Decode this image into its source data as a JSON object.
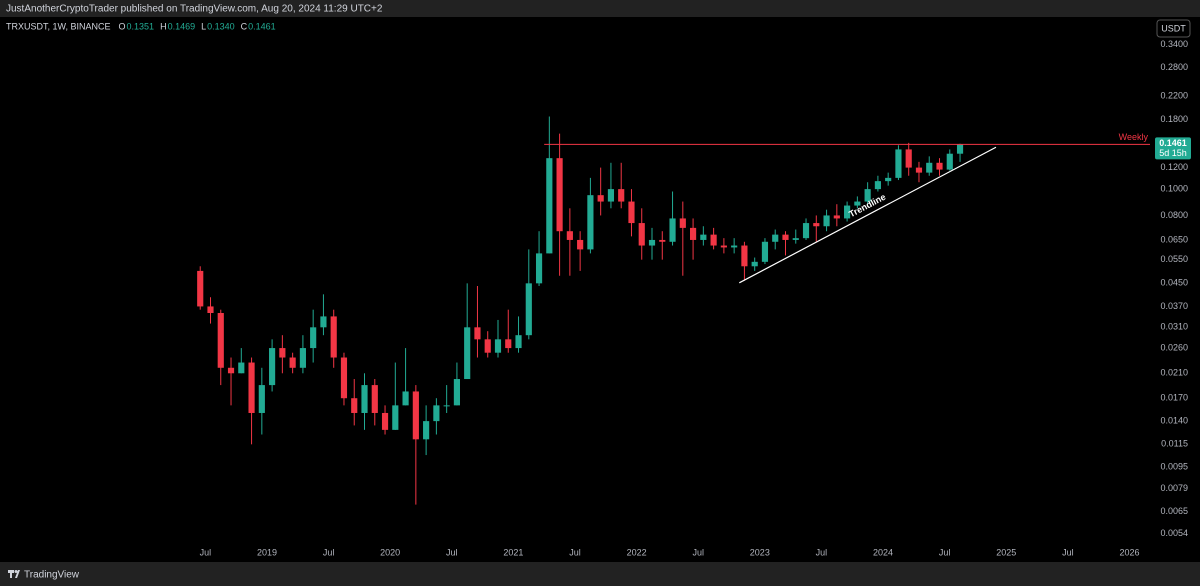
{
  "header": {
    "publisher": "JustAnotherCryptoTrader published on TradingView.com, Aug 20, 2024 11:29 UTC+2"
  },
  "footer": {
    "brand": "TradingView"
  },
  "chart_data": {
    "type": "candlestick",
    "symbol": "TRXUSDT, 1W, BINANCE",
    "ohlc_legend": [
      {
        "key": "O",
        "text": "0.1351"
      },
      {
        "key": "H",
        "text": "0.1469"
      },
      {
        "key": "L",
        "text": "0.1340"
      },
      {
        "key": "C",
        "text": "0.1461"
      }
    ],
    "currency": "USDT",
    "countdown": "5d 15h",
    "up_color": "#22ab94",
    "down_color": "#f23645",
    "log_scale": true,
    "grid": false,
    "x": [
      "2018-06",
      "2018-07",
      "2018-08",
      "2018-09",
      "2018-10",
      "2018-11",
      "2018-12",
      "2019-01",
      "2019-02",
      "2019-03",
      "2019-04",
      "2019-05",
      "2019-06",
      "2019-07",
      "2019-08",
      "2019-09",
      "2019-10",
      "2019-11",
      "2019-12",
      "2020-01",
      "2020-02",
      "2020-03",
      "2020-04",
      "2020-05",
      "2020-06",
      "2020-07",
      "2020-08",
      "2020-09",
      "2020-10",
      "2020-11",
      "2020-12",
      "2021-01",
      "2021-02",
      "2021-03",
      "2021-04",
      "2021-05",
      "2021-06",
      "2021-07",
      "2021-08",
      "2021-09",
      "2021-10",
      "2021-11",
      "2021-12",
      "2022-01",
      "2022-02",
      "2022-03",
      "2022-04",
      "2022-05",
      "2022-06",
      "2022-07",
      "2022-08",
      "2022-09",
      "2022-10",
      "2022-11",
      "2022-12",
      "2023-01",
      "2023-02",
      "2023-03",
      "2023-04",
      "2023-05",
      "2023-06",
      "2023-07",
      "2023-08",
      "2023-09",
      "2023-10",
      "2023-11",
      "2023-12",
      "2024-01",
      "2024-02",
      "2024-03",
      "2024-04",
      "2024-05",
      "2024-06",
      "2024-07",
      "2024-08"
    ],
    "open": [
      0.05,
      0.037,
      0.035,
      0.022,
      0.021,
      0.023,
      0.015,
      0.019,
      0.026,
      0.024,
      0.022,
      0.026,
      0.031,
      0.034,
      0.024,
      0.017,
      0.015,
      0.019,
      0.015,
      0.013,
      0.016,
      0.018,
      0.012,
      0.014,
      0.016,
      0.016,
      0.02,
      0.031,
      0.028,
      0.025,
      0.028,
      0.026,
      0.029,
      0.045,
      0.058,
      0.13,
      0.07,
      0.065,
      0.06,
      0.095,
      0.09,
      0.1,
      0.09,
      0.075,
      0.062,
      0.065,
      0.064,
      0.078,
      0.072,
      0.065,
      0.068,
      0.062,
      0.061,
      0.062,
      0.052,
      0.054,
      0.064,
      0.068,
      0.065,
      0.066,
      0.075,
      0.073,
      0.08,
      0.078,
      0.087,
      0.09,
      0.1,
      0.107,
      0.11,
      0.14,
      0.12,
      0.115,
      0.125,
      0.118,
      0.135
    ],
    "high": [
      0.052,
      0.04,
      0.036,
      0.024,
      0.026,
      0.024,
      0.022,
      0.028,
      0.029,
      0.025,
      0.029,
      0.036,
      0.041,
      0.036,
      0.025,
      0.02,
      0.021,
      0.02,
      0.016,
      0.023,
      0.026,
      0.019,
      0.016,
      0.017,
      0.019,
      0.023,
      0.045,
      0.044,
      0.03,
      0.033,
      0.036,
      0.034,
      0.06,
      0.07,
      0.185,
      0.16,
      0.085,
      0.07,
      0.11,
      0.12,
      0.125,
      0.125,
      0.1,
      0.085,
      0.072,
      0.07,
      0.098,
      0.09,
      0.078,
      0.073,
      0.072,
      0.066,
      0.066,
      0.064,
      0.056,
      0.066,
      0.071,
      0.07,
      0.071,
      0.078,
      0.08,
      0.084,
      0.088,
      0.09,
      0.094,
      0.106,
      0.112,
      0.115,
      0.145,
      0.148,
      0.126,
      0.132,
      0.13,
      0.14,
      0.1469
    ],
    "low": [
      0.036,
      0.032,
      0.019,
      0.016,
      0.021,
      0.0115,
      0.0125,
      0.018,
      0.021,
      0.021,
      0.021,
      0.023,
      0.029,
      0.022,
      0.016,
      0.0135,
      0.013,
      0.0135,
      0.0125,
      0.013,
      0.016,
      0.0069,
      0.0105,
      0.0125,
      0.015,
      0.016,
      0.02,
      0.024,
      0.024,
      0.024,
      0.025,
      0.025,
      0.028,
      0.044,
      0.058,
      0.048,
      0.048,
      0.05,
      0.058,
      0.08,
      0.085,
      0.085,
      0.067,
      0.055,
      0.055,
      0.055,
      0.062,
      0.048,
      0.055,
      0.062,
      0.06,
      0.058,
      0.058,
      0.046,
      0.05,
      0.053,
      0.06,
      0.057,
      0.063,
      0.065,
      0.064,
      0.07,
      0.073,
      0.076,
      0.085,
      0.088,
      0.098,
      0.103,
      0.108,
      0.112,
      0.106,
      0.112,
      0.112,
      0.117,
      0.126
    ],
    "close": [
      0.037,
      0.035,
      0.022,
      0.021,
      0.023,
      0.015,
      0.019,
      0.026,
      0.024,
      0.022,
      0.026,
      0.031,
      0.034,
      0.024,
      0.017,
      0.015,
      0.019,
      0.015,
      0.013,
      0.016,
      0.018,
      0.012,
      0.014,
      0.016,
      0.016,
      0.02,
      0.031,
      0.028,
      0.025,
      0.028,
      0.026,
      0.029,
      0.045,
      0.058,
      0.13,
      0.07,
      0.065,
      0.06,
      0.095,
      0.09,
      0.1,
      0.09,
      0.075,
      0.062,
      0.065,
      0.064,
      0.078,
      0.072,
      0.065,
      0.068,
      0.062,
      0.061,
      0.062,
      0.052,
      0.054,
      0.064,
      0.068,
      0.065,
      0.066,
      0.075,
      0.073,
      0.08,
      0.078,
      0.087,
      0.09,
      0.1,
      0.107,
      0.11,
      0.14,
      0.12,
      0.115,
      0.125,
      0.118,
      0.135,
      0.1461
    ],
    "xlim": [
      "2016-11",
      "2026-03"
    ],
    "xticks": [
      {
        "value": "2018-07",
        "label": "Jul"
      },
      {
        "value": "2019-01",
        "label": "2019"
      },
      {
        "value": "2019-07",
        "label": "Jul"
      },
      {
        "value": "2020-01",
        "label": "2020"
      },
      {
        "value": "2020-07",
        "label": "Jul"
      },
      {
        "value": "2021-01",
        "label": "2021"
      },
      {
        "value": "2021-07",
        "label": "Jul"
      },
      {
        "value": "2022-01",
        "label": "2022"
      },
      {
        "value": "2022-07",
        "label": "Jul"
      },
      {
        "value": "2023-01",
        "label": "2023"
      },
      {
        "value": "2023-07",
        "label": "Jul"
      },
      {
        "value": "2024-01",
        "label": "2024"
      },
      {
        "value": "2024-07",
        "label": "Jul"
      },
      {
        "value": "2025-01",
        "label": "2025"
      },
      {
        "value": "2025-07",
        "label": "Jul"
      },
      {
        "value": "2026-01",
        "label": "2026"
      }
    ],
    "ylim": [
      0.0049,
      0.43
    ],
    "yticks": [
      {
        "value": 0.34,
        "label": "0.3400"
      },
      {
        "value": 0.28,
        "label": "0.2800"
      },
      {
        "value": 0.22,
        "label": "0.2200"
      },
      {
        "value": 0.18,
        "label": "0.1800"
      },
      {
        "value": 0.12,
        "label": "0.1200"
      },
      {
        "value": 0.1,
        "label": "0.1000"
      },
      {
        "value": 0.08,
        "label": "0.0800"
      },
      {
        "value": 0.065,
        "label": "0.0650"
      },
      {
        "value": 0.055,
        "label": "0.0550"
      },
      {
        "value": 0.045,
        "label": "0.0450"
      },
      {
        "value": 0.037,
        "label": "0.0370"
      },
      {
        "value": 0.031,
        "label": "0.0310"
      },
      {
        "value": 0.026,
        "label": "0.0260"
      },
      {
        "value": 0.021,
        "label": "0.0210"
      },
      {
        "value": 0.017,
        "label": "0.0170"
      },
      {
        "value": 0.014,
        "label": "0.0140"
      },
      {
        "value": 0.0115,
        "label": "0.0115"
      },
      {
        "value": 0.0095,
        "label": "0.0095"
      },
      {
        "value": 0.0079,
        "label": "0.0079"
      },
      {
        "value": 0.0065,
        "label": "0.0065"
      },
      {
        "value": 0.0054,
        "label": "0.0054"
      }
    ],
    "horizontal_line": {
      "label": "Weekly",
      "x": "2021-04",
      "y": 0.1461,
      "color": "#f23645"
    },
    "trendline": {
      "label": "Trendline",
      "x": [
        "2022-11",
        "2024-12"
      ],
      "y": [
        0.0452,
        0.1426
      ],
      "color": "#ffffff"
    }
  }
}
